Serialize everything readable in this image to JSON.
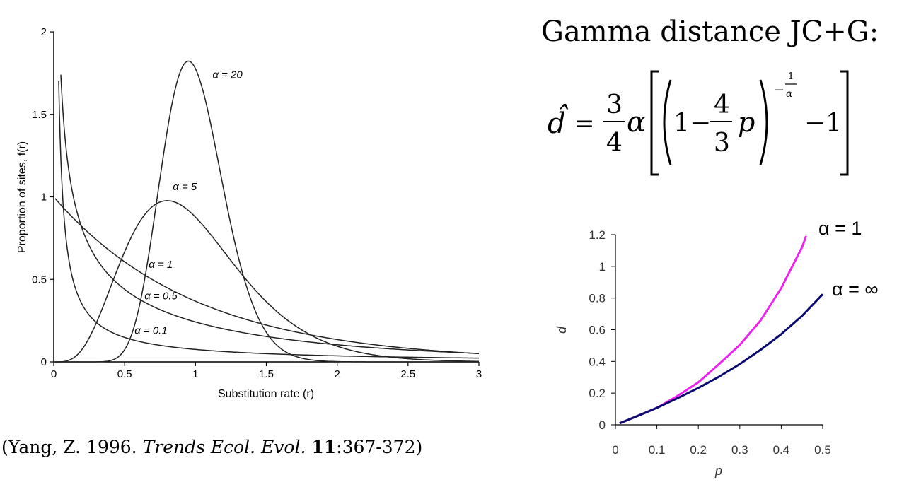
{
  "title": "Gamma distance JC+G:",
  "formula": {
    "lhs": "d̂",
    "eq": "=",
    "frac_num": "3",
    "frac_den": "4",
    "alpha": "α",
    "one": "1",
    "minus": "−",
    "frac2_num": "4",
    "frac2_den": "3",
    "p": "p",
    "exp_minus": "−",
    "exp_num": "1",
    "exp_den": "α",
    "minus_one": "−1"
  },
  "citation": {
    "pre": "(Yang, Z. 1996. ",
    "journal": "Trends Ecol. Evol.",
    "volume": "11",
    "pages": ":367-372)"
  },
  "chart_data": [
    {
      "type": "line",
      "title": "",
      "xlabel": "Substitution rate (r)",
      "ylabel": "Proportion of sites, f(r)",
      "xlim": [
        0,
        3
      ],
      "ylim": [
        0,
        2
      ],
      "xticks": [
        "0",
        "0.5",
        "1",
        "1.5",
        "2",
        "2.5",
        "3"
      ],
      "yticks": [
        "0",
        "0.5",
        "1",
        "1.5",
        "2"
      ],
      "series": [
        {
          "name": "α = 20",
          "alpha": 20,
          "label_text": "α = 20"
        },
        {
          "name": "α = 5",
          "alpha": 5,
          "label_text": "α = 5"
        },
        {
          "name": "α = 1",
          "alpha": 1,
          "label_text": "α = 1"
        },
        {
          "name": "α = 0.5",
          "alpha": 0.5,
          "label_text": "α = 0.5"
        },
        {
          "name": "α = 0.1",
          "alpha": 0.1,
          "label_text": "α = 0.1"
        }
      ],
      "grid": false,
      "line_color": "#222222"
    },
    {
      "type": "line",
      "title": "",
      "xlabel": "p",
      "ylabel": "d",
      "xlim": [
        0,
        0.5
      ],
      "ylim": [
        0,
        1.2
      ],
      "xticks": [
        "0",
        "0.1",
        "0.2",
        "0.3",
        "0.4",
        "0.5"
      ],
      "yticks": [
        "0",
        "0.2",
        "0.4",
        "0.6",
        "0.8",
        "1",
        "1.2"
      ],
      "grid": false,
      "series": [
        {
          "name": "α = 1",
          "color": "#ee22ee",
          "x": [
            0.01,
            0.05,
            0.1,
            0.15,
            0.2,
            0.25,
            0.3,
            0.35,
            0.4,
            0.45,
            0.46
          ],
          "y": [
            0.01,
            0.052,
            0.107,
            0.183,
            0.268,
            0.383,
            0.504,
            0.658,
            0.863,
            1.12,
            1.19
          ]
        },
        {
          "name": "α = ∞",
          "color": "#0a0a70",
          "x": [
            0.01,
            0.05,
            0.1,
            0.15,
            0.2,
            0.25,
            0.3,
            0.35,
            0.4,
            0.45,
            0.5
          ],
          "y": [
            0.01,
            0.052,
            0.107,
            0.168,
            0.233,
            0.304,
            0.383,
            0.473,
            0.572,
            0.687,
            0.824
          ]
        }
      ]
    }
  ]
}
